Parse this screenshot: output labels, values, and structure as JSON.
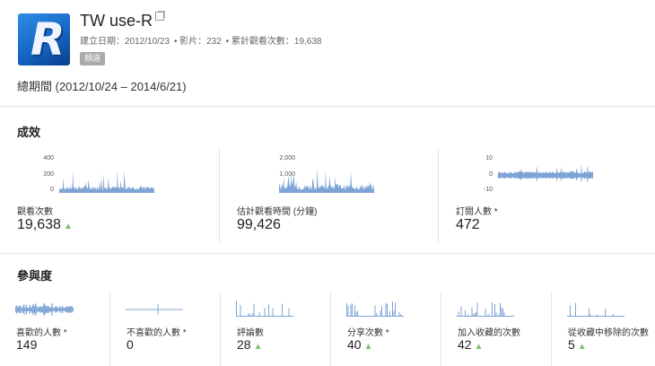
{
  "channel": {
    "title": "TW use-R",
    "created": "建立日期：2012/10/23",
    "videos": "影片：232",
    "views": "累計觀看次數：19,638",
    "badge": "頻道",
    "period": "總期間 (2012/10/24 – 2014/6/21)"
  },
  "performance": {
    "title": "成效",
    "cards": [
      {
        "label": "觀看次數",
        "value": "19,638",
        "trend": "▲",
        "ticks": [
          "400",
          "200",
          "0"
        ]
      },
      {
        "label": "估計觀看時間 (分鐘)",
        "value": "99,426",
        "trend": "",
        "ticks": [
          "2,000",
          "1,000",
          "0"
        ]
      },
      {
        "label": "訂閱人數 *",
        "value": "472",
        "trend": "",
        "ticks": [
          "10",
          "0",
          "-10"
        ]
      }
    ]
  },
  "engagement": {
    "title": "參與度",
    "cards": [
      {
        "label": "喜歡的人數 *",
        "value": "149",
        "trend": ""
      },
      {
        "label": "不喜歡的人數 *",
        "value": "0",
        "trend": ""
      },
      {
        "label": "評論數",
        "value": "28",
        "trend": "▲"
      },
      {
        "label": "分享次數 *",
        "value": "40",
        "trend": "▲"
      },
      {
        "label": "加入收藏的次數",
        "value": "42",
        "trend": "▲"
      },
      {
        "label": "從收藏中移除的次數",
        "value": "5",
        "trend": "▲"
      }
    ]
  },
  "colors": {
    "spark": "#7ea4d6",
    "up": "#7cbf6e"
  }
}
